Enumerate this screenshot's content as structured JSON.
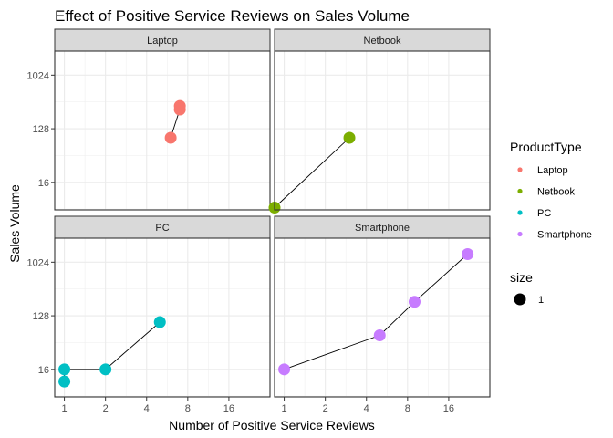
{
  "chart_data": {
    "type": "scatter",
    "title": "Effect of Positive Service Reviews on Sales Volume",
    "xlabel": "Number of Positive Service Reviews",
    "ylabel": "Sales Volume",
    "x_scale": "log2",
    "y_scale": "log2",
    "xlim": [
      0.85,
      32
    ],
    "ylim": [
      5.5,
      2600
    ],
    "x_ticks": [
      1,
      2,
      4,
      8,
      16
    ],
    "x_tick_labels": [
      "1",
      "2",
      "4",
      "8",
      "16"
    ],
    "y_ticks": [
      16,
      128,
      1024
    ],
    "y_tick_labels": [
      "16",
      "128",
      "1024"
    ],
    "grid": true,
    "legend_position": "right",
    "legend": {
      "color_title": "ProductType",
      "size_title": "size",
      "size_label": "1"
    },
    "series": [
      {
        "name": "Laptop",
        "color": "#F8766D",
        "points": [
          {
            "x": 6,
            "y": 90
          },
          {
            "x": 7,
            "y": 270
          },
          {
            "x": 7,
            "y": 310
          }
        ]
      },
      {
        "name": "Netbook",
        "color": "#7CAE00",
        "points": [
          {
            "x": 0.85,
            "y": 6
          },
          {
            "x": 3,
            "y": 90
          }
        ]
      },
      {
        "name": "PC",
        "color": "#00BFC4",
        "points": [
          {
            "x": 1,
            "y": 10
          },
          {
            "x": 1,
            "y": 16
          },
          {
            "x": 2,
            "y": 16
          },
          {
            "x": 5,
            "y": 100
          }
        ]
      },
      {
        "name": "Smartphone",
        "color": "#C77CFF",
        "points": [
          {
            "x": 1,
            "y": 16
          },
          {
            "x": 5,
            "y": 60
          },
          {
            "x": 9,
            "y": 220
          },
          {
            "x": 22,
            "y": 1400
          }
        ]
      }
    ]
  }
}
